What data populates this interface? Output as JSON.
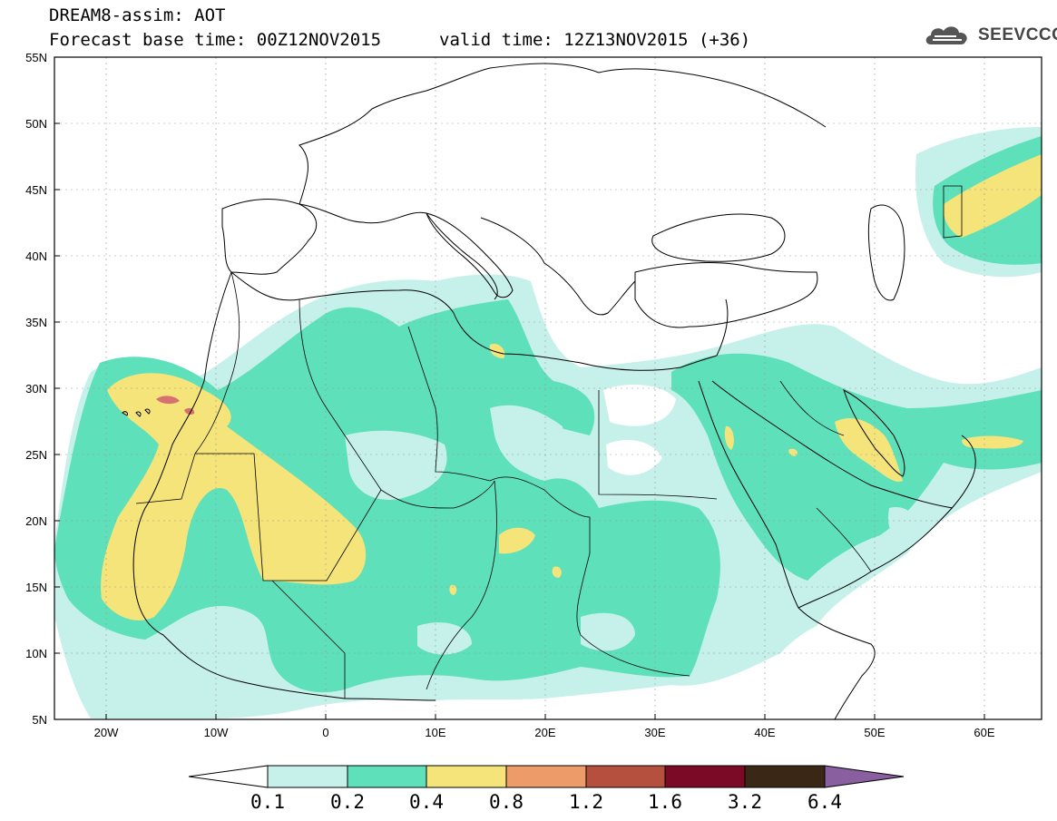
{
  "header": {
    "title": "DREAM8-assim: AOT",
    "base_time": "Forecast base time: 00Z12NOV2015",
    "valid_time": "valid time: 12Z13NOV2015 (+36)",
    "logo": "SEEVCCC"
  },
  "map": {
    "lat_labels": [
      "55N",
      "50N",
      "45N",
      "40N",
      "35N",
      "30N",
      "25N",
      "20N",
      "15N",
      "10N",
      "5N"
    ],
    "lon_labels": [
      "20W",
      "10W",
      "0",
      "10E",
      "20E",
      "30E",
      "40E",
      "50E",
      "60E"
    ],
    "field": "AOT"
  },
  "colorbar": {
    "levels": [
      "0.1",
      "0.2",
      "0.4",
      "0.8",
      "1.2",
      "1.6",
      "3.2",
      "6.4"
    ],
    "colors": [
      "#c6f0ea",
      "#5ee0bb",
      "#f4e479",
      "#ee9b6a",
      "#b5503f",
      "#7a0a25",
      "#3a2716",
      "#8a5fa0"
    ]
  },
  "colors": {
    "c1": "#c6f0ea",
    "c2": "#5ee0bb",
    "c3": "#f4e479",
    "c4": "#ee9b6a",
    "c5": "#d77070"
  }
}
